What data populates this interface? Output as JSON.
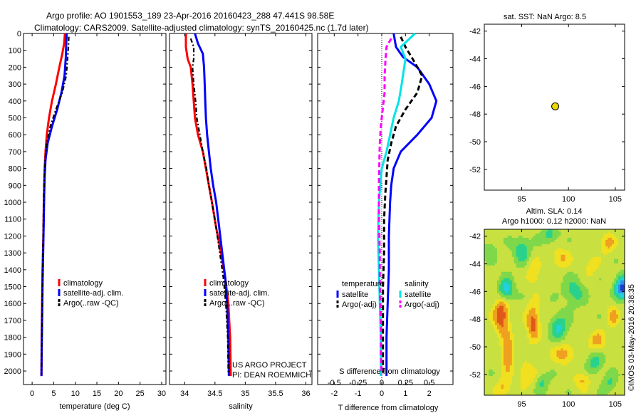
{
  "header": {
    "line1": "Argo profile: AO 1901553_189 23-Apr-2016 20160423_288 47.441S 98.58E",
    "line2": "Climatology: CARS2009. Satellite-adjusted climatology: synTS_20160425.nc (1.7d later)"
  },
  "credits": {
    "project": "US ARGO PROJECT",
    "pi": "PI: DEAN ROEMMICH",
    "imos": "©IMOS 03-May-2016 20:38:35"
  },
  "colors": {
    "climatology": "#ff0000",
    "satellite": "#0000ff",
    "argo": "#000000",
    "sal_satellite": "#00e5e5",
    "sal_argo": "#ff00ff",
    "marker": "#e8d800"
  },
  "depth_axis": {
    "ylim": [
      0,
      2080
    ],
    "ticks": [
      "0",
      "100",
      "200",
      "300",
      "400",
      "500",
      "600",
      "700",
      "800",
      "900",
      "1000",
      "1100",
      "1200",
      "1300",
      "1400",
      "1500",
      "1600",
      "1700",
      "1800",
      "1900",
      "2000"
    ]
  },
  "chart_data": [
    {
      "id": "temperature",
      "type": "line",
      "xlabel": "temperature (deg C)",
      "xlim": [
        -2,
        31
      ],
      "xticks": [
        "0",
        "5",
        "10",
        "15",
        "20",
        "25",
        "30"
      ],
      "legend": {
        "placement": "lower-center",
        "entries": [
          "climatology",
          "satellite-adj. clim.",
          "Argo(..raw -QC)"
        ]
      },
      "series": [
        {
          "name": "climatology",
          "color": "#ff0000",
          "style": "solid",
          "points": [
            [
              7.6,
              0
            ],
            [
              7.4,
              60
            ],
            [
              7.0,
              120
            ],
            [
              6.3,
              200
            ],
            [
              5.5,
              300
            ],
            [
              4.6,
              400
            ],
            [
              3.9,
              500
            ],
            [
              3.4,
              600
            ],
            [
              3.1,
              700
            ],
            [
              2.9,
              800
            ],
            [
              2.8,
              900
            ],
            [
              2.7,
              1000
            ],
            [
              2.6,
              1200
            ],
            [
              2.4,
              1400
            ],
            [
              2.3,
              1600
            ],
            [
              2.2,
              1800
            ],
            [
              2.15,
              2030
            ]
          ]
        },
        {
          "name": "satellite-adj. clim.",
          "color": "#0000ff",
          "style": "solid",
          "points": [
            [
              8.0,
              0
            ],
            [
              7.9,
              60
            ],
            [
              7.8,
              140
            ],
            [
              7.5,
              250
            ],
            [
              6.8,
              350
            ],
            [
              5.8,
              450
            ],
            [
              4.6,
              550
            ],
            [
              3.6,
              650
            ],
            [
              3.1,
              750
            ],
            [
              2.9,
              850
            ],
            [
              2.8,
              950
            ],
            [
              2.7,
              1100
            ],
            [
              2.55,
              1300
            ],
            [
              2.4,
              1500
            ],
            [
              2.3,
              1700
            ],
            [
              2.2,
              1900
            ],
            [
              2.15,
              2030
            ]
          ]
        },
        {
          "name": "Argo(..raw -QC)",
          "color": "#000000",
          "style": "dashdot",
          "points": [
            [
              8.5,
              20
            ],
            [
              8.4,
              80
            ],
            [
              8.2,
              150
            ],
            [
              7.9,
              250
            ],
            [
              7.0,
              350
            ],
            [
              5.5,
              450
            ],
            [
              4.2,
              550
            ],
            [
              3.4,
              650
            ],
            [
              3.0,
              750
            ],
            [
              2.8,
              850
            ],
            [
              2.7,
              950
            ],
            [
              2.6,
              1100
            ],
            [
              2.5,
              1300
            ],
            [
              2.4,
              1500
            ],
            [
              2.3,
              1700
            ],
            [
              2.2,
              1900
            ],
            [
              2.15,
              2020
            ]
          ]
        }
      ]
    },
    {
      "id": "salinity",
      "type": "line",
      "xlabel": "salinity",
      "xlim": [
        33.75,
        36.1
      ],
      "xticks": [
        "34",
        "34.5",
        "35",
        "35.5",
        "36"
      ],
      "legend": {
        "placement": "lower-center",
        "entries": [
          "climatology",
          "satellite-adj. clim.",
          "Argo(..raw -QC)"
        ]
      },
      "series": [
        {
          "name": "climatology",
          "color": "#ff0000",
          "style": "solid",
          "points": [
            [
              34.02,
              0
            ],
            [
              34.02,
              80
            ],
            [
              34.05,
              150
            ],
            [
              34.1,
              200
            ],
            [
              34.13,
              300
            ],
            [
              34.15,
              400
            ],
            [
              34.17,
              500
            ],
            [
              34.22,
              600
            ],
            [
              34.3,
              700
            ],
            [
              34.35,
              800
            ],
            [
              34.4,
              900
            ],
            [
              34.45,
              1000
            ],
            [
              34.52,
              1150
            ],
            [
              34.6,
              1300
            ],
            [
              34.67,
              1450
            ],
            [
              34.72,
              1600
            ],
            [
              34.75,
              1800
            ],
            [
              34.76,
              2030
            ]
          ]
        },
        {
          "name": "satellite-adj. clim.",
          "color": "#0000ff",
          "style": "solid",
          "points": [
            [
              34.17,
              0
            ],
            [
              34.22,
              60
            ],
            [
              34.3,
              120
            ],
            [
              34.32,
              200
            ],
            [
              34.33,
              300
            ],
            [
              34.34,
              400
            ],
            [
              34.35,
              500
            ],
            [
              34.37,
              600
            ],
            [
              34.4,
              700
            ],
            [
              34.43,
              800
            ],
            [
              34.47,
              900
            ],
            [
              34.52,
              1000
            ],
            [
              34.57,
              1150
            ],
            [
              34.62,
              1300
            ],
            [
              34.67,
              1450
            ],
            [
              34.7,
              1600
            ],
            [
              34.72,
              1800
            ],
            [
              34.73,
              2030
            ]
          ]
        },
        {
          "name": "Argo(..raw -QC)",
          "color": "#000000",
          "style": "dashdot",
          "points": [
            [
              34.1,
              30
            ],
            [
              34.15,
              80
            ],
            [
              34.15,
              150
            ],
            [
              34.13,
              200
            ],
            [
              34.15,
              300
            ],
            [
              34.18,
              400
            ],
            [
              34.2,
              500
            ],
            [
              34.25,
              600
            ],
            [
              34.3,
              700
            ],
            [
              34.36,
              800
            ],
            [
              34.4,
              900
            ],
            [
              34.45,
              1000
            ],
            [
              34.52,
              1150
            ],
            [
              34.58,
              1300
            ],
            [
              34.64,
              1450
            ],
            [
              34.68,
              1600
            ],
            [
              34.71,
              1800
            ],
            [
              34.72,
              2020
            ]
          ]
        }
      ]
    },
    {
      "id": "difference",
      "type": "line",
      "xlabel": "T difference from climatology",
      "xlim": [
        -2.7,
        3.0
      ],
      "xticks": [
        "-2",
        "-1",
        "0",
        "1",
        "2"
      ],
      "top_label": "S difference from climatology",
      "top_ticks": [
        {
          "value": -0.5,
          "label": "-0.5"
        },
        {
          "value": -0.25,
          "label": "-0.25"
        },
        {
          "value": 0,
          "label": "0"
        },
        {
          "value": 0.25,
          "label": "0.25"
        },
        {
          "value": 0.5,
          "label": "0.5"
        }
      ],
      "s_scale": 4,
      "zero_line": true,
      "legend": {
        "placement": "lower-center",
        "groups": [
          {
            "title": "temperature",
            "entries": [
              {
                "name": "satellite",
                "color": "#0000ff",
                "style": "solid"
              },
              {
                "name": "Argo(-adj)",
                "color": "#000000",
                "style": "dashed"
              }
            ]
          },
          {
            "title": "salinity",
            "entries": [
              {
                "name": "satellite",
                "color": "#00e5e5",
                "style": "solid"
              },
              {
                "name": "Argo(-adj)",
                "color": "#ff00ff",
                "style": "dashed"
              }
            ]
          }
        ]
      },
      "series": [
        {
          "name": "temperature satellite",
          "color": "#0000ff",
          "style": "solid",
          "points": [
            [
              0.5,
              0
            ],
            [
              0.6,
              80
            ],
            [
              0.9,
              140
            ],
            [
              1.5,
              200
            ],
            [
              2.0,
              300
            ],
            [
              2.3,
              400
            ],
            [
              2.1,
              500
            ],
            [
              1.5,
              600
            ],
            [
              0.8,
              700
            ],
            [
              0.5,
              800
            ],
            [
              0.4,
              900
            ],
            [
              0.35,
              1000
            ],
            [
              0.3,
              1200
            ],
            [
              0.3,
              1400
            ],
            [
              0.25,
              1600
            ],
            [
              0.2,
              1800
            ],
            [
              0.2,
              2030
            ]
          ]
        },
        {
          "name": "temperature Argo(-adj)",
          "color": "#000000",
          "style": "dashed",
          "points": [
            [
              0.8,
              20
            ],
            [
              1.0,
              80
            ],
            [
              1.3,
              150
            ],
            [
              1.7,
              250
            ],
            [
              1.5,
              350
            ],
            [
              1.0,
              450
            ],
            [
              0.6,
              550
            ],
            [
              0.4,
              650
            ],
            [
              0.25,
              750
            ],
            [
              0.2,
              850
            ],
            [
              0.15,
              950
            ],
            [
              0.1,
              1100
            ],
            [
              0.1,
              1300
            ],
            [
              0.05,
              1500
            ],
            [
              0.05,
              1700
            ],
            [
              0.05,
              1900
            ],
            [
              0.05,
              2020
            ]
          ]
        },
        {
          "name": "salinity satellite",
          "color": "#00e5e5",
          "style": "solid",
          "points": [
            [
              0.35,
              0
            ],
            [
              0.2,
              80
            ],
            [
              0.25,
              150
            ],
            [
              0.21,
              300
            ],
            [
              0.18,
              400
            ],
            [
              0.125,
              500
            ],
            [
              0.05,
              700
            ],
            [
              0.0,
              800
            ],
            [
              -0.03,
              1000
            ],
            [
              -0.04,
              1200
            ],
            [
              -0.03,
              1400
            ],
            [
              -0.02,
              1600
            ],
            [
              -0.01,
              1800
            ],
            [
              -0.01,
              2030
            ]
          ]
        },
        {
          "name": "salinity Argo(-adj)",
          "color": "#ff00ff",
          "style": "dashed",
          "points": [
            [
              0.1,
              30
            ],
            [
              0.05,
              80
            ],
            [
              0.04,
              150
            ],
            [
              0.03,
              250
            ],
            [
              0.03,
              350
            ],
            [
              0.01,
              450
            ],
            [
              -0.01,
              550
            ],
            [
              -0.02,
              650
            ],
            [
              -0.025,
              750
            ],
            [
              -0.03,
              900
            ],
            [
              -0.03,
              1100
            ],
            [
              -0.02,
              1300
            ],
            [
              -0.02,
              1500
            ],
            [
              -0.01,
              1700
            ],
            [
              -0.01,
              1900
            ],
            [
              0.0,
              2020
            ]
          ]
        }
      ]
    },
    {
      "id": "sst-map",
      "type": "scatter",
      "title": "sat. SST: NaN Argo: 8.5",
      "xlim": [
        91,
        106
      ],
      "ylim": [
        -53.5,
        -41.5
      ],
      "xticks": [
        "95",
        "100",
        "105"
      ],
      "yticks": [
        "-42",
        "-44",
        "-46",
        "-48",
        "-50",
        "-52"
      ],
      "points": [
        [
          98.58,
          -47.44
        ]
      ]
    },
    {
      "id": "sla-map",
      "type": "heatmap",
      "title_line1": "Altim. SLA: 0.14",
      "title_line2": "Argo h1000: 0.12 h2000: NaN",
      "xlim": [
        91,
        106
      ],
      "ylim": [
        -53.5,
        -41.5
      ],
      "xticks": [
        "95",
        "100",
        "105"
      ],
      "yticks": [
        "-42",
        "-44",
        "-46",
        "-48",
        "-50",
        "-52"
      ],
      "colormap": [
        "#1a3ccf",
        "#2f8fe8",
        "#22d0e0",
        "#28d28c",
        "#7ed84a",
        "#c8e040",
        "#f0e020",
        "#f0a020",
        "#e05818",
        "#c82818"
      ],
      "blobs": [
        [
          92.8,
          -47.7,
          0.8,
          1.3,
          1.0
        ],
        [
          93.5,
          -50.5,
          0.6,
          1.4,
          0.8
        ],
        [
          96.2,
          -48.2,
          0.7,
          1.3,
          0.85
        ],
        [
          95.5,
          -52.0,
          0.9,
          0.8,
          0.5
        ],
        [
          99.5,
          -50.5,
          1.1,
          0.7,
          0.6
        ],
        [
          101.5,
          -52.4,
          0.8,
          0.6,
          0.5
        ],
        [
          103.0,
          -49.6,
          0.9,
          0.7,
          0.55
        ],
        [
          104.8,
          -47.8,
          0.7,
          0.8,
          0.5
        ],
        [
          104.2,
          -42.5,
          0.8,
          0.7,
          0.55
        ],
        [
          99.2,
          -43.6,
          1.0,
          0.7,
          0.45
        ],
        [
          96.3,
          -44.6,
          0.7,
          0.9,
          0.45
        ],
        [
          93.0,
          -53.0,
          0.8,
          0.6,
          0.5
        ],
        [
          105.8,
          -45.7,
          0.8,
          0.8,
          -1.3
        ],
        [
          93.3,
          -45.9,
          0.8,
          0.8,
          -0.9
        ],
        [
          95.0,
          -43.0,
          0.9,
          0.9,
          -0.6
        ],
        [
          99.0,
          -48.6,
          0.9,
          0.9,
          -0.7
        ],
        [
          100.6,
          -46.0,
          1.1,
          1.0,
          -0.5
        ],
        [
          102.8,
          -51.2,
          0.8,
          0.8,
          -0.5
        ],
        [
          98.0,
          -41.9,
          0.9,
          0.6,
          -0.5
        ],
        [
          97.2,
          -52.6,
          0.7,
          0.7,
          -0.4
        ],
        [
          102.4,
          -44.2,
          0.8,
          0.8,
          0.3
        ],
        [
          91.6,
          -43.0,
          0.7,
          0.8,
          -0.3
        ],
        [
          104.4,
          -52.6,
          0.7,
          0.7,
          -0.4
        ]
      ]
    }
  ]
}
